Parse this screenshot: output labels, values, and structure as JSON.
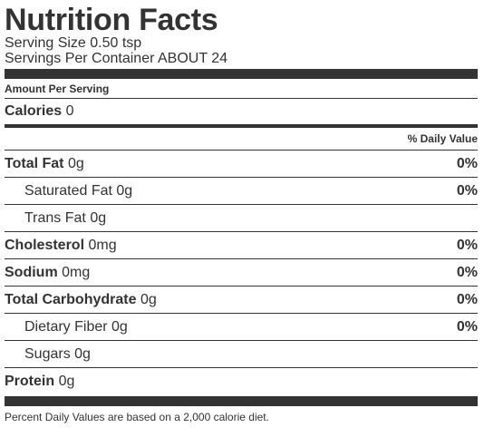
{
  "title": "Nutrition Facts",
  "serving_size": "Serving Size 0.50 tsp",
  "servings_per_container": "Servings Per Container ABOUT 24",
  "amount_per_serving": "Amount Per Serving",
  "calories": {
    "label": "Calories",
    "value": "0"
  },
  "daily_value_header": "% Daily Value",
  "nutrients": [
    {
      "label": "Total Fat",
      "amount": "0g",
      "dv": "0%"
    },
    {
      "label": "Saturated Fat",
      "amount": "0g",
      "dv": "0%"
    },
    {
      "label": "Trans Fat",
      "amount": "0g",
      "dv": ""
    },
    {
      "label": "Cholesterol",
      "amount": "0mg",
      "dv": "0%"
    },
    {
      "label": "Sodium",
      "amount": "0mg",
      "dv": "0%"
    },
    {
      "label": "Total Carbohydrate",
      "amount": "0g",
      "dv": "0%"
    },
    {
      "label": "Dietary Fiber",
      "amount": "0g",
      "dv": "0%"
    },
    {
      "label": "Sugars",
      "amount": "0g",
      "dv": ""
    },
    {
      "label": "Protein",
      "amount": "0g",
      "dv": ""
    }
  ],
  "footnote": "Percent Daily Values are based on a 2,000 calorie diet."
}
